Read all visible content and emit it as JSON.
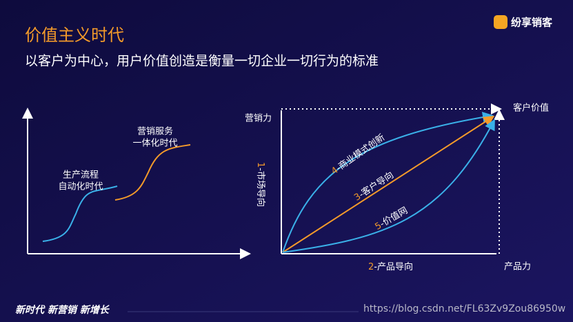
{
  "header": {
    "title": "价值主义时代",
    "subtitle": "以客户为中心，用户价值创造是衡量一切企业一切行为的标准",
    "logo": "纷享销客"
  },
  "left_diagram": {
    "stages": [
      {
        "lines": [
          "生产流程",
          "自动化时代"
        ]
      },
      {
        "lines": [
          "营销服务",
          "一体化时代"
        ]
      }
    ]
  },
  "right_diagram": {
    "y_axis": "营销力",
    "x_axis": "产品力",
    "corner": "客户价值",
    "paths": [
      {
        "num": "1",
        "text": "-市场导向"
      },
      {
        "num": "2",
        "text": "-产品导向"
      },
      {
        "num": "3",
        "text": "-客户导向"
      },
      {
        "num": "4",
        "text": "-商业模式创新"
      },
      {
        "num": "5",
        "text": "-价值网"
      }
    ]
  },
  "footer": {
    "slogan": "新时代 新营销 新增长",
    "url": "https://blog.csdn.net/FL63Zv9Zou86950w"
  }
}
